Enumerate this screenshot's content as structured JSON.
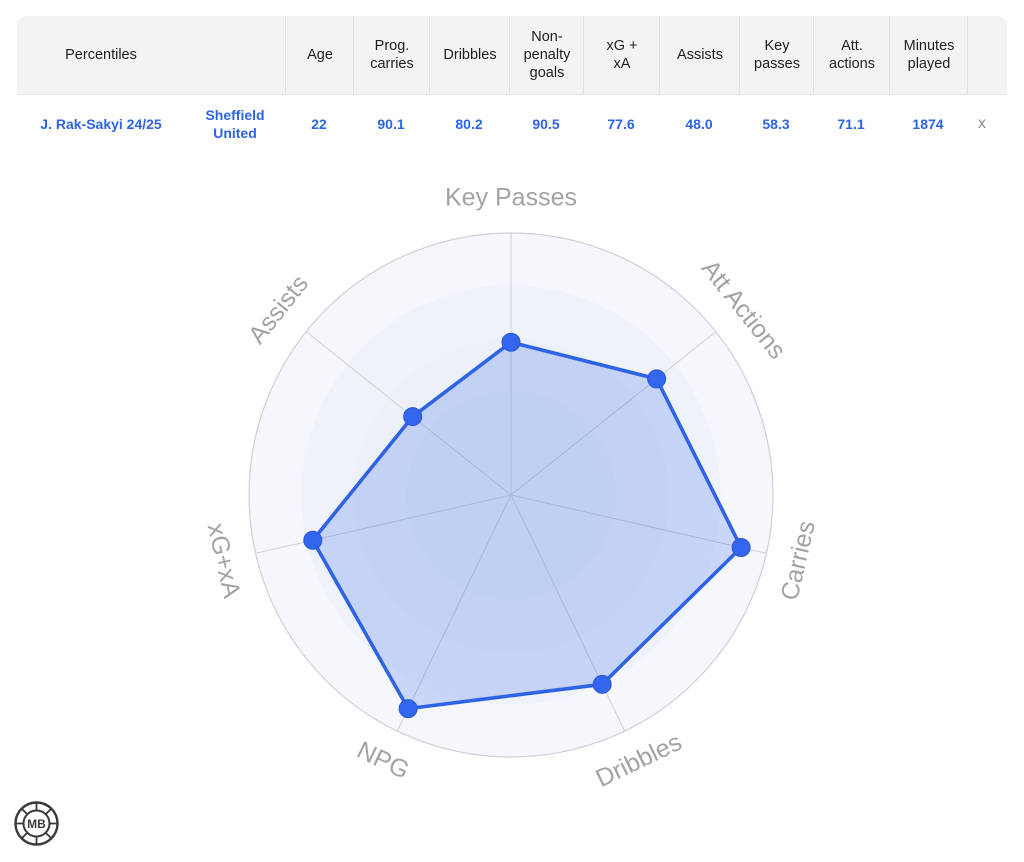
{
  "table": {
    "headers": {
      "percentiles": "Percentiles",
      "age": "Age",
      "prog_carries": [
        "Prog.",
        "carries"
      ],
      "dribbles": "Dribbles",
      "npg": [
        "Non-",
        "penalty",
        "goals"
      ],
      "xgxa": [
        "xG +",
        "xA"
      ],
      "assists": "Assists",
      "key_passes": [
        "Key",
        "passes"
      ],
      "att_actions": [
        "Att.",
        "actions"
      ],
      "minutes": [
        "Minutes",
        "played"
      ]
    },
    "row": {
      "player": "J. Rak-Sakyi 24/25",
      "team": [
        "Sheffield",
        "United"
      ],
      "age": "22",
      "prog_carries": "90.1",
      "dribbles": "80.2",
      "npg": "90.5",
      "xgxa": "77.6",
      "assists": "48.0",
      "key_passes": "58.3",
      "att_actions": "71.1",
      "minutes": "1874",
      "remove": "x"
    }
  },
  "chart_data": {
    "type": "radar",
    "range": [
      0,
      100
    ],
    "grid": true,
    "axes": [
      "Key Passes",
      "Att Actions",
      "Carries",
      "Dribbles",
      "NPG",
      "xG+xA",
      "Assists"
    ],
    "values": [
      58.3,
      71.1,
      90.1,
      80.2,
      90.5,
      77.6,
      48.0
    ],
    "colors": {
      "line": "#2e63e6",
      "fill": "#2e63e6",
      "point": "#3366ee",
      "grid_line": "#cfd0d6",
      "ring_fill": "#e9eef8",
      "label": "#a3a3a6"
    }
  },
  "logo": {
    "text": "MB",
    "icon": "mb-logo-icon"
  }
}
